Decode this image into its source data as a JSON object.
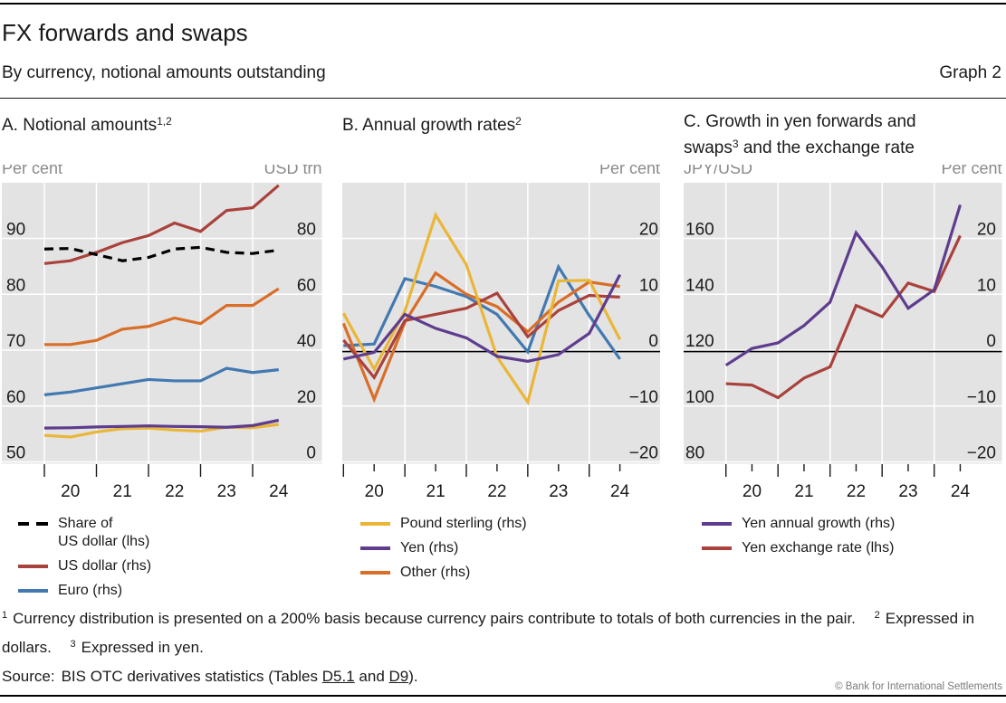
{
  "header": {
    "title": "FX forwards and swaps",
    "subtitle": "By currency, notional amounts outstanding",
    "graph_label": "Graph 2"
  },
  "panel_titles": {
    "a": {
      "text": "A. Notional amounts",
      "sup": "1,2"
    },
    "b": {
      "text": "B. Annual growth rates",
      "sup": "2"
    },
    "c": {
      "line1": "C. Growth in yen forwards and",
      "line2_pre": "swaps",
      "sup": "3",
      "line2_post": " and the exchange rate"
    }
  },
  "palette": {
    "red": "#a9423c",
    "blue": "#4279b1",
    "orange": "#d96e28",
    "yellow": "#eab638",
    "purple": "#5e3c8e",
    "black": "#000000",
    "plot_bg": "#e3e3e3",
    "gridline": "#ffffff",
    "unit_label": "#8a8a8a",
    "tick_label": "#1a1a1a"
  },
  "chart_data": [
    {
      "id": "A",
      "type": "line",
      "title": "A. Notional amounts (1,2)",
      "x_tick_labels": [
        "20",
        "21",
        "22",
        "23",
        "24"
      ],
      "periods": [
        "2019 H2",
        "2020 H1",
        "2020 H2",
        "2021 H1",
        "2021 H2",
        "2022 H1",
        "2022 H2",
        "2023 H1",
        "2023 H2",
        "2024 H1"
      ],
      "axes": {
        "left": {
          "title": "Per cent",
          "tick_labels": [
            "90",
            "80",
            "70",
            "60",
            "50"
          ],
          "range": [
            49.7,
            100.2
          ]
        },
        "right": {
          "title": "USD trn",
          "tick_labels": [
            "80",
            "60",
            "40",
            "20",
            "0"
          ],
          "range": [
            -0.5,
            100.3
          ]
        }
      },
      "grid": true,
      "zero_line": false,
      "legend_position": "below",
      "series": [
        {
          "name": "Euro (rhs)",
          "key": "euro",
          "axis": "rhs",
          "color": "blue",
          "dash": false,
          "values": [
            24,
            25,
            26.5,
            28,
            29.5,
            29,
            29,
            33.5,
            32,
            33
          ]
        },
        {
          "name": "Pound sterling (rhs)",
          "key": "pound-sterling",
          "axis": "rhs",
          "color": "yellow",
          "dash": false,
          "values": [
            9.5,
            8.9,
            10.7,
            11.9,
            12.1,
            11.4,
            11.0,
            12.4,
            12.2,
            13.4
          ]
        },
        {
          "name": "Yen (rhs)",
          "key": "yen",
          "axis": "rhs",
          "color": "purple",
          "dash": false,
          "values": [
            12.1,
            12.2,
            12.5,
            12.7,
            12.9,
            12.7,
            12.6,
            12.4,
            13.0,
            14.9
          ]
        },
        {
          "name": "Other (rhs)",
          "key": "other",
          "axis": "rhs",
          "color": "orange",
          "dash": false,
          "values": [
            42,
            42,
            43.5,
            47.5,
            48.5,
            51.5,
            49.5,
            56,
            56,
            62
          ]
        },
        {
          "name": "US dollar (rhs)",
          "key": "us-dollar",
          "axis": "rhs",
          "color": "red",
          "dash": false,
          "values": [
            71,
            72,
            75,
            78.5,
            81,
            85.5,
            82.5,
            90,
            91,
            99
          ]
        },
        {
          "name": "Share of US dollar (lhs)",
          "key": "share-of-us-dollar",
          "axis": "lhs",
          "color": "black",
          "dash": true,
          "values": [
            88.1,
            88.2,
            87.1,
            86.0,
            86.6,
            88.1,
            88.4,
            87.5,
            87.3,
            87.9
          ]
        }
      ]
    },
    {
      "id": "B",
      "type": "line",
      "title": "B. Annual growth rates (2)",
      "x_tick_labels": [
        "20",
        "21",
        "22",
        "23",
        "24"
      ],
      "periods": [
        "2019 H2",
        "2020 H1",
        "2020 H2",
        "2021 H1",
        "2021 H2",
        "2022 H1",
        "2022 H2",
        "2023 H1",
        "2023 H2",
        "2024 H1"
      ],
      "axes": {
        "left": null,
        "right": {
          "title": "Per cent",
          "tick_labels": [
            "20",
            "10",
            "0",
            "−10",
            "−20"
          ],
          "range": [
            -20.3,
            30
          ]
        }
      },
      "grid": true,
      "zero_line": true,
      "legend_position": "below",
      "series": [
        {
          "name": "Euro (rhs)",
          "key": "euro",
          "axis": "rhs",
          "color": "blue",
          "dash": false,
          "values": [
            0.8,
            1.1,
            12.8,
            11.4,
            9.6,
            6.4,
            -0.3,
            14.9,
            6.2,
            -1.6
          ]
        },
        {
          "name": "Other (rhs)",
          "key": "other",
          "axis": "rhs",
          "color": "orange",
          "dash": false,
          "values": [
            4.8,
            -8.8,
            5.0,
            13.8,
            10.0,
            7.8,
            3.3,
            8.6,
            12.2,
            11.4
          ]
        },
        {
          "name": "US dollar (rhs)",
          "key": "us-dollar",
          "axis": "rhs",
          "color": "red",
          "dash": false,
          "values": [
            1.8,
            -4.9,
            5.3,
            6.4,
            7.5,
            10.2,
            2.4,
            7.1,
            9.8,
            9.5
          ]
        },
        {
          "name": "Pound sterling (rhs)",
          "key": "pound-sterling",
          "axis": "rhs",
          "color": "yellow",
          "dash": false,
          "values": [
            6.6,
            -3.4,
            7.0,
            24.2,
            15.3,
            -1.2,
            -9.3,
            12.4,
            12.5,
            1.9
          ]
        },
        {
          "name": "Yen (rhs)",
          "key": "yen",
          "axis": "rhs",
          "color": "purple",
          "dash": false,
          "values": [
            -1.6,
            -0.4,
            6.4,
            3.9,
            2.2,
            -1.1,
            -2.0,
            -0.8,
            3.0,
            13.5
          ]
        }
      ]
    },
    {
      "id": "C",
      "type": "line",
      "title": "C. Growth in yen forwards and swaps (3) and the exchange rate",
      "x_tick_labels": [
        "20",
        "21",
        "22",
        "23",
        "24"
      ],
      "periods": [
        "2019 H2",
        "2020 H1",
        "2020 H2",
        "2021 H1",
        "2021 H2",
        "2022 H1",
        "2022 H2",
        "2023 H1",
        "2023 H2",
        "2024 H1"
      ],
      "axes": {
        "left": {
          "title": "JPY/USD",
          "tick_labels": [
            "160",
            "140",
            "120",
            "100",
            "80"
          ],
          "range": [
            79.4,
            180
          ]
        },
        "right": {
          "title": "Per cent",
          "tick_labels": [
            "20",
            "10",
            "0",
            "−10",
            "−20"
          ],
          "range": [
            -20.3,
            30
          ]
        }
      },
      "grid": true,
      "zero_line": true,
      "legend_position": "below",
      "series": [
        {
          "name": "Yen exchange rate (lhs)",
          "key": "yen-exchange-rate",
          "axis": "lhs",
          "color": "red",
          "dash": false,
          "values": [
            108,
            107.5,
            103,
            110,
            114,
            136,
            132,
            144,
            141,
            161
          ]
        },
        {
          "name": "Yen annual growth (rhs)",
          "key": "yen-annual-growth",
          "axis": "rhs",
          "color": "purple",
          "dash": false,
          "values": [
            -2.7,
            0.3,
            1.3,
            4.4,
            8.6,
            21.0,
            14.9,
            7.5,
            10.8,
            26.0
          ]
        }
      ]
    }
  ],
  "legends": {
    "a": [
      {
        "swatch": "dashed",
        "color": "black",
        "lines": [
          "Share of",
          "US dollar (lhs)"
        ]
      },
      {
        "swatch": "solid",
        "color": "red",
        "lines": [
          "US dollar (rhs)"
        ]
      },
      {
        "swatch": "solid",
        "color": "blue",
        "lines": [
          "Euro (rhs)"
        ]
      }
    ],
    "b": [
      {
        "swatch": "solid",
        "color": "yellow",
        "lines": [
          "Pound sterling (rhs)"
        ]
      },
      {
        "swatch": "solid",
        "color": "purple",
        "lines": [
          "Yen (rhs)"
        ]
      },
      {
        "swatch": "solid",
        "color": "orange",
        "lines": [
          "Other (rhs)"
        ]
      }
    ],
    "c": [
      {
        "swatch": "solid",
        "color": "purple",
        "lines": [
          "Yen annual growth (rhs)"
        ]
      },
      {
        "swatch": "solid",
        "color": "red",
        "lines": [
          "Yen exchange rate (lhs)"
        ]
      }
    ]
  },
  "footnotes": {
    "fn1_sup": "1",
    "fn1": "Currency distribution is presented on a 200% basis because currency pairs contribute to totals of both currencies in the pair.",
    "fn2_sup": "2",
    "fn2": "Expressed in dollars.",
    "fn3_sup": "3",
    "fn3": "Expressed in yen."
  },
  "source": {
    "label": "Source:",
    "text": "BIS OTC derivatives statistics (Tables",
    "link1": "D5.1",
    "conj": "and",
    "link2": "D9",
    "suffix": ")."
  },
  "footer": {
    "copyright": "© Bank for International Settlements"
  }
}
